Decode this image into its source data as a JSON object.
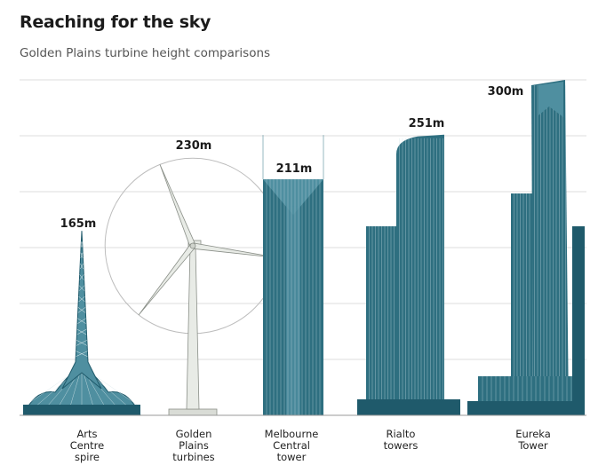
{
  "chart_data": {
    "type": "bar",
    "title": "Reaching for the sky",
    "subtitle": "Golden Plains turbine height comparisons",
    "categories": [
      "Arts Centre spire",
      "Golden Plains turbines",
      "Melbourne Central tower",
      "Rialto towers",
      "Eureka Tower"
    ],
    "category_lines": [
      [
        "Arts",
        "Centre",
        "spire"
      ],
      [
        "Golden",
        "Plains",
        "turbines"
      ],
      [
        "Melbourne",
        "Central",
        "tower"
      ],
      [
        "Rialto",
        "towers"
      ],
      [
        "Eureka",
        "Tower"
      ]
    ],
    "values": [
      165,
      230,
      211,
      251,
      300
    ],
    "value_labels": [
      "165m",
      "230m",
      "211m",
      "251m",
      "300m"
    ],
    "unit": "m",
    "ylim": [
      0,
      300
    ],
    "gridline_values": [
      50,
      100,
      150,
      200,
      250,
      300
    ],
    "grid": true,
    "legend": false
  },
  "colors": {
    "building_dark": "#1f5a6b",
    "building_mid": "#2e6f80",
    "building_light": "#4f8fa0",
    "turbine": "#e8ebe6",
    "turbine_outline": "#8a8f88",
    "gridline": "#dcdcdc",
    "text": "#1b1b1b"
  }
}
